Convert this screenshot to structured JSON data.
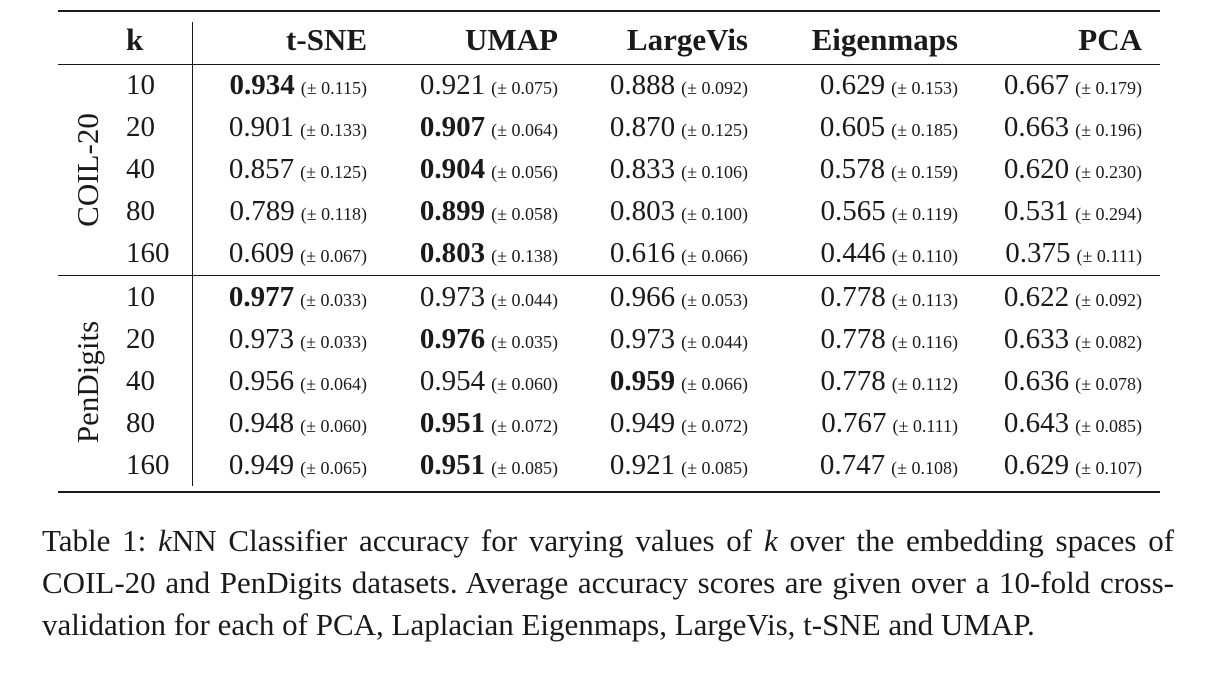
{
  "table": {
    "columns": [
      "k",
      "t-SNE",
      "UMAP",
      "LargeVis",
      "Eigenmaps",
      "PCA"
    ],
    "groups": [
      {
        "name": "COIL-20",
        "rows": [
          {
            "k": "10",
            "cells": [
              {
                "v": "0.934",
                "sd": "(± 0.115)",
                "best": true
              },
              {
                "v": "0.921",
                "sd": "(± 0.075)"
              },
              {
                "v": "0.888",
                "sd": "(± 0.092)"
              },
              {
                "v": "0.629",
                "sd": "(± 0.153)"
              },
              {
                "v": "0.667",
                "sd": "(± 0.179)"
              }
            ]
          },
          {
            "k": "20",
            "cells": [
              {
                "v": "0.901",
                "sd": "(± 0.133)"
              },
              {
                "v": "0.907",
                "sd": "(± 0.064)",
                "best": true
              },
              {
                "v": "0.870",
                "sd": "(± 0.125)"
              },
              {
                "v": "0.605",
                "sd": "(± 0.185)"
              },
              {
                "v": "0.663",
                "sd": "(± 0.196)"
              }
            ]
          },
          {
            "k": "40",
            "cells": [
              {
                "v": "0.857",
                "sd": "(± 0.125)"
              },
              {
                "v": "0.904",
                "sd": "(± 0.056)",
                "best": true
              },
              {
                "v": "0.833",
                "sd": "(± 0.106)"
              },
              {
                "v": "0.578",
                "sd": "(± 0.159)"
              },
              {
                "v": "0.620",
                "sd": "(± 0.230)"
              }
            ]
          },
          {
            "k": "80",
            "cells": [
              {
                "v": "0.789",
                "sd": "(± 0.118)"
              },
              {
                "v": "0.899",
                "sd": "(± 0.058)",
                "best": true
              },
              {
                "v": "0.803",
                "sd": "(± 0.100)"
              },
              {
                "v": "0.565",
                "sd": "(± 0.119)"
              },
              {
                "v": "0.531",
                "sd": "(± 0.294)"
              }
            ]
          },
          {
            "k": "160",
            "cells": [
              {
                "v": "0.609",
                "sd": "(± 0.067)"
              },
              {
                "v": "0.803",
                "sd": "(± 0.138)",
                "best": true
              },
              {
                "v": "0.616",
                "sd": "(± 0.066)"
              },
              {
                "v": "0.446",
                "sd": "(± 0.110)"
              },
              {
                "v": "0.375",
                "sd": "(± 0.111)"
              }
            ]
          }
        ]
      },
      {
        "name": "PenDigits",
        "rows": [
          {
            "k": "10",
            "cells": [
              {
                "v": "0.977",
                "sd": "(± 0.033)",
                "best": true
              },
              {
                "v": "0.973",
                "sd": "(± 0.044)"
              },
              {
                "v": "0.966",
                "sd": "(± 0.053)"
              },
              {
                "v": "0.778",
                "sd": "(± 0.113)"
              },
              {
                "v": "0.622",
                "sd": "(± 0.092)"
              }
            ]
          },
          {
            "k": "20",
            "cells": [
              {
                "v": "0.973",
                "sd": "(± 0.033)"
              },
              {
                "v": "0.976",
                "sd": "(± 0.035)",
                "best": true
              },
              {
                "v": "0.973",
                "sd": "(± 0.044)"
              },
              {
                "v": "0.778",
                "sd": "(± 0.116)"
              },
              {
                "v": "0.633",
                "sd": "(± 0.082)"
              }
            ]
          },
          {
            "k": "40",
            "cells": [
              {
                "v": "0.956",
                "sd": "(± 0.064)"
              },
              {
                "v": "0.954",
                "sd": "(± 0.060)"
              },
              {
                "v": "0.959",
                "sd": "(± 0.066)",
                "best": true
              },
              {
                "v": "0.778",
                "sd": "(± 0.112)"
              },
              {
                "v": "0.636",
                "sd": "(± 0.078)"
              }
            ]
          },
          {
            "k": "80",
            "cells": [
              {
                "v": "0.948",
                "sd": "(± 0.060)"
              },
              {
                "v": "0.951",
                "sd": "(± 0.072)",
                "best": true
              },
              {
                "v": "0.949",
                "sd": "(± 0.072)"
              },
              {
                "v": "0.767",
                "sd": "(± 0.111)"
              },
              {
                "v": "0.643",
                "sd": "(± 0.085)"
              }
            ]
          },
          {
            "k": "160",
            "cells": [
              {
                "v": "0.949",
                "sd": "(± 0.065)"
              },
              {
                "v": "0.951",
                "sd": "(± 0.085)",
                "best": true
              },
              {
                "v": "0.921",
                "sd": "(± 0.085)"
              },
              {
                "v": "0.747",
                "sd": "(± 0.108)"
              },
              {
                "v": "0.629",
                "sd": "(± 0.107)"
              }
            ]
          }
        ]
      }
    ]
  },
  "caption": {
    "label": "Table 1:",
    "k_italic": "k",
    "part1": "NN Classifier accuracy for varying values of",
    "k_italic2": "k",
    "part2": "over the embedding spaces of COIL-20 and PenDigits datasets. Average accuracy scores are given over a 10-fold cross-validation for each of PCA, Laplacian Eigenmaps, LargeVis, t-SNE and UMAP."
  }
}
